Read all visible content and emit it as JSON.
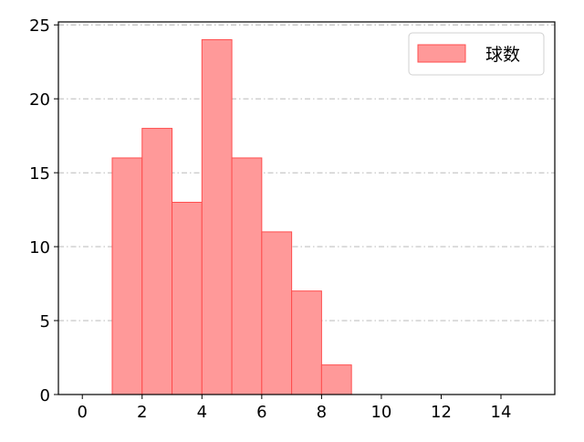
{
  "chart_data": {
    "type": "bar",
    "histogram": true,
    "bins": [
      [
        1,
        2
      ],
      [
        2,
        3
      ],
      [
        3,
        4
      ],
      [
        4,
        5
      ],
      [
        5,
        6
      ],
      [
        6,
        7
      ],
      [
        7,
        8
      ],
      [
        8,
        9
      ]
    ],
    "series": [
      {
        "name": "球数",
        "values": [
          16,
          18,
          13,
          24,
          16,
          11,
          7,
          2
        ]
      }
    ],
    "xlim": [
      -0.8,
      15.8
    ],
    "ylim": [
      0,
      25.2
    ],
    "xticks": [
      0,
      2,
      4,
      6,
      8,
      10,
      12,
      14
    ],
    "yticks": [
      0,
      5,
      10,
      15,
      20,
      25
    ],
    "grid": "y, dash-dot",
    "legend": "top-right",
    "colors": {
      "bar_fill": "#ff9999",
      "bar_edge": "#ff4d4d",
      "grid": "#b0b0b0"
    }
  }
}
